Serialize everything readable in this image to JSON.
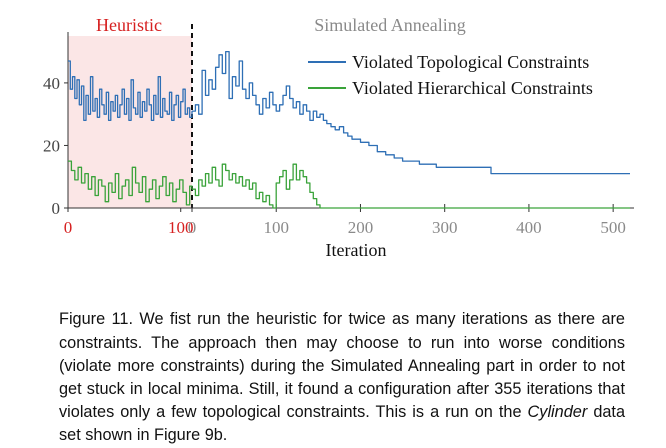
{
  "chart_data": {
    "type": "line",
    "phases": [
      {
        "name": "Heuristic",
        "color": "#d62020",
        "x_range": [
          0,
          110
        ],
        "tick_labels": [
          "0",
          "100"
        ]
      },
      {
        "name": "Simulated Annealing",
        "color": "#8a8a8a",
        "x_range": [
          0,
          520
        ],
        "tick_labels": [
          "0",
          "100",
          "200",
          "300",
          "400",
          "500"
        ]
      }
    ],
    "xlabel": "Iteration",
    "ylabel": "",
    "ylim": [
      0,
      55
    ],
    "yticks": [
      "0",
      "20",
      "40"
    ],
    "grid": false,
    "legend_position": "top-right",
    "colors": {
      "topological": "#2e6fb5",
      "hierarchical": "#3aa33a",
      "heuristic_shade": "#fbe6e6",
      "heuristic_label": "#d62020",
      "sa_label": "#8a8a8a"
    },
    "series": [
      {
        "name": "Violated Topological Constraints",
        "heuristic": {
          "x": [
            0,
            2,
            4,
            6,
            8,
            10,
            12,
            14,
            16,
            18,
            20,
            22,
            24,
            26,
            28,
            30,
            32,
            34,
            36,
            38,
            40,
            42,
            44,
            46,
            48,
            50,
            52,
            54,
            56,
            58,
            60,
            62,
            64,
            66,
            68,
            70,
            72,
            74,
            76,
            78,
            80,
            82,
            84,
            86,
            88,
            90,
            92,
            94,
            96,
            98,
            100,
            102,
            104,
            106,
            108,
            110
          ],
          "y": [
            47,
            38,
            42,
            35,
            41,
            33,
            39,
            28,
            36,
            30,
            42,
            31,
            35,
            29,
            38,
            33,
            30,
            37,
            28,
            34,
            31,
            36,
            29,
            33,
            38,
            30,
            35,
            28,
            41,
            32,
            30,
            37,
            29,
            34,
            31,
            38,
            33,
            28,
            36,
            30,
            42,
            29,
            35,
            31,
            30,
            37,
            28,
            33,
            36,
            29,
            34,
            38,
            30,
            32,
            29,
            31
          ]
        },
        "annealing": {
          "x": [
            0,
            4,
            8,
            12,
            16,
            20,
            24,
            28,
            32,
            36,
            40,
            44,
            48,
            52,
            56,
            60,
            64,
            68,
            72,
            76,
            80,
            84,
            88,
            92,
            96,
            100,
            104,
            108,
            112,
            116,
            120,
            124,
            128,
            132,
            136,
            140,
            144,
            148,
            152,
            156,
            160,
            165,
            170,
            175,
            180,
            185,
            190,
            200,
            210,
            220,
            230,
            240,
            250,
            260,
            270,
            280,
            290,
            300,
            310,
            320,
            330,
            340,
            350,
            355,
            370,
            400,
            450,
            500,
            520
          ],
          "y": [
            31,
            33,
            30,
            44,
            36,
            41,
            38,
            45,
            49,
            43,
            50,
            35,
            42,
            39,
            47,
            38,
            35,
            40,
            36,
            33,
            30,
            35,
            32,
            37,
            33,
            31,
            33,
            36,
            39,
            35,
            32,
            34,
            30,
            33,
            31,
            28,
            31,
            29,
            30,
            28,
            27,
            26,
            25,
            26,
            24,
            23,
            22,
            21,
            20,
            18,
            17,
            16,
            15,
            15,
            14,
            14,
            13,
            13,
            13,
            13,
            13,
            13,
            13,
            11,
            11,
            11,
            11,
            11,
            11
          ]
        }
      },
      {
        "name": "Violated Hierarchical Constraints",
        "heuristic": {
          "x": [
            0,
            3,
            6,
            9,
            12,
            15,
            18,
            21,
            24,
            27,
            30,
            33,
            36,
            39,
            42,
            45,
            48,
            51,
            54,
            57,
            60,
            63,
            66,
            69,
            72,
            75,
            78,
            81,
            84,
            87,
            90,
            93,
            96,
            99,
            102,
            105,
            108,
            110
          ],
          "y": [
            15,
            12,
            9,
            13,
            8,
            11,
            6,
            10,
            4,
            9,
            7,
            2,
            8,
            5,
            11,
            3,
            7,
            9,
            4,
            13,
            8,
            5,
            10,
            2,
            6,
            9,
            3,
            7,
            10,
            4,
            8,
            2,
            6,
            9,
            5,
            1,
            7,
            6
          ]
        },
        "annealing": {
          "x": [
            0,
            4,
            8,
            12,
            16,
            20,
            24,
            28,
            32,
            36,
            40,
            44,
            48,
            52,
            56,
            60,
            64,
            68,
            72,
            76,
            80,
            84,
            88,
            92,
            96,
            100,
            104,
            108,
            112,
            116,
            120,
            124,
            128,
            132,
            136,
            140,
            144,
            148,
            152,
            156,
            160,
            200,
            300,
            400,
            500,
            520
          ],
          "y": [
            6,
            4,
            9,
            7,
            11,
            8,
            13,
            9,
            7,
            14,
            12,
            9,
            11,
            8,
            10,
            7,
            9,
            6,
            8,
            3,
            5,
            2,
            4,
            1,
            0,
            8,
            10,
            12,
            6,
            9,
            14,
            9,
            12,
            10,
            8,
            5,
            3,
            1,
            0,
            0,
            0,
            0,
            0,
            0,
            0,
            0
          ]
        }
      }
    ]
  },
  "caption": {
    "lead": "Figure 11.  We fist run the heuristic for twice as many iterations as there are constraints. The approach then may choose to run into worse conditions (violate more constraints) during the Simulated Annealing part in order to not get stuck in local minima. Still, it found a configuration after 355 iterations that violates only a few topological constraints. This is a run on the ",
    "dataset": "Cylinder",
    "tail": " data set shown in Figure 9b."
  }
}
